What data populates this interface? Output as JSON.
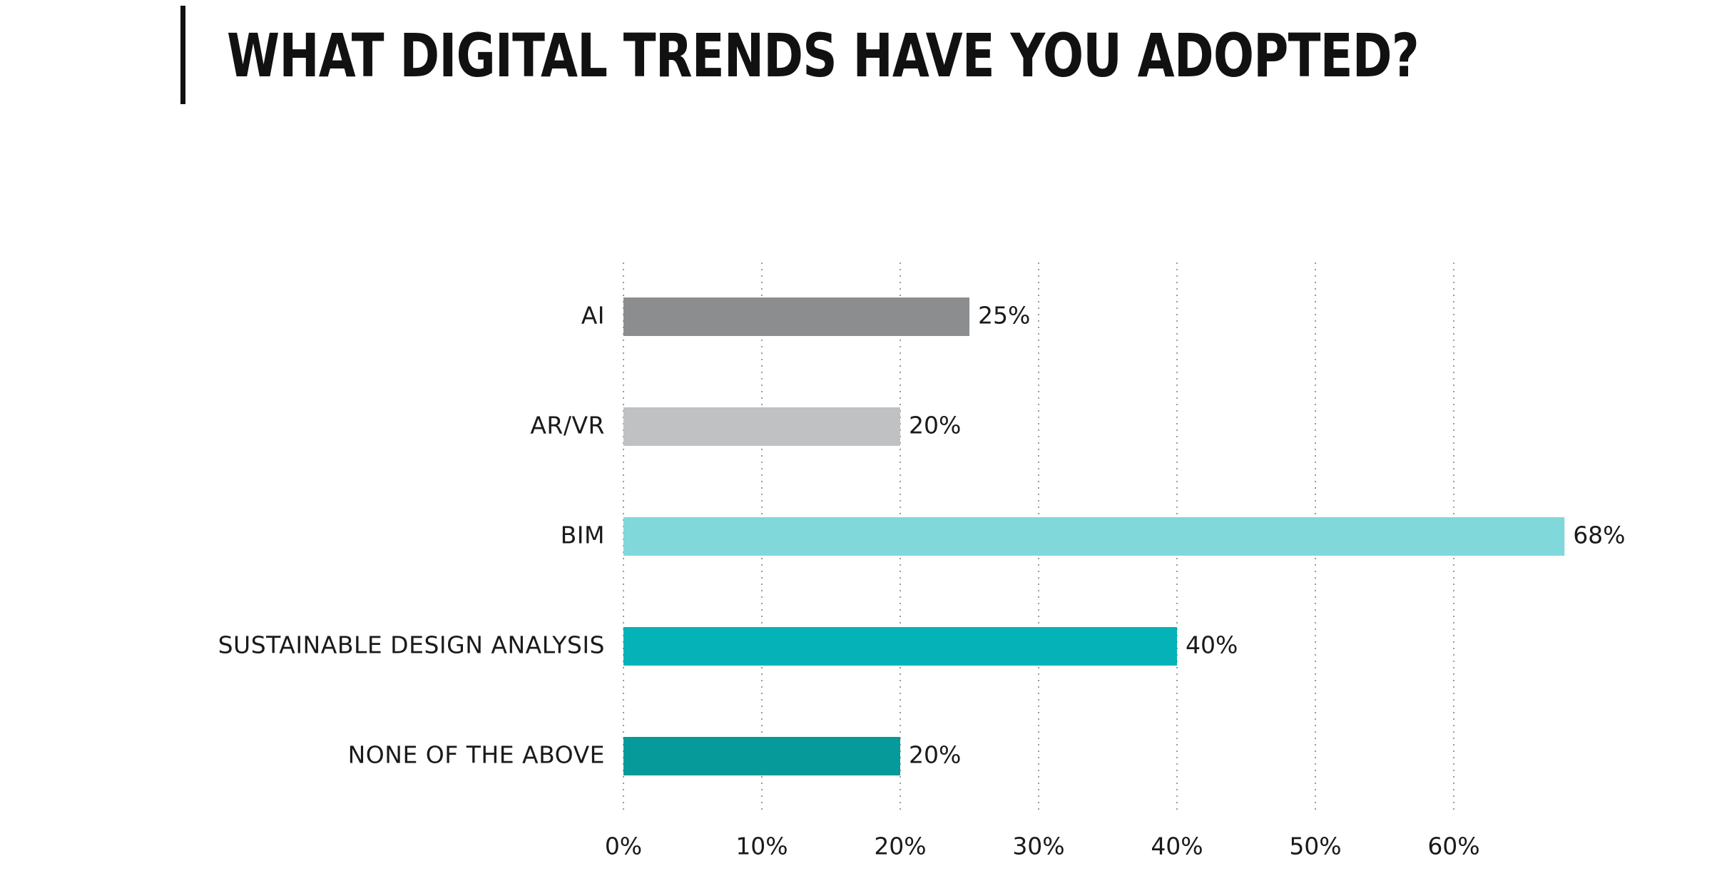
{
  "chart_data": {
    "type": "bar",
    "orientation": "horizontal",
    "title": "WHAT DIGITAL TRENDS HAVE YOU ADOPTED?",
    "categories": [
      "AI",
      "AR/VR",
      "BIM",
      "SUSTAINABLE DESIGN ANALYSIS",
      "NONE OF THE ABOVE"
    ],
    "values": [
      25,
      20,
      68,
      40,
      20
    ],
    "value_labels": [
      "25%",
      "20%",
      "68%",
      "40%",
      "20%"
    ],
    "colors": [
      "#8c8d8f",
      "#c0c1c2",
      "#80d8da",
      "#05b2b8",
      "#079a9a"
    ],
    "xlim": [
      0,
      60
    ],
    "ticks": [
      0,
      10,
      20,
      30,
      40,
      50,
      60
    ],
    "tick_labels": [
      "0%",
      "10%",
      "20%",
      "30%",
      "40%",
      "50%",
      "60%"
    ],
    "grid": "vertical dotted",
    "legend": "none",
    "xlabel": "",
    "ylabel": ""
  }
}
